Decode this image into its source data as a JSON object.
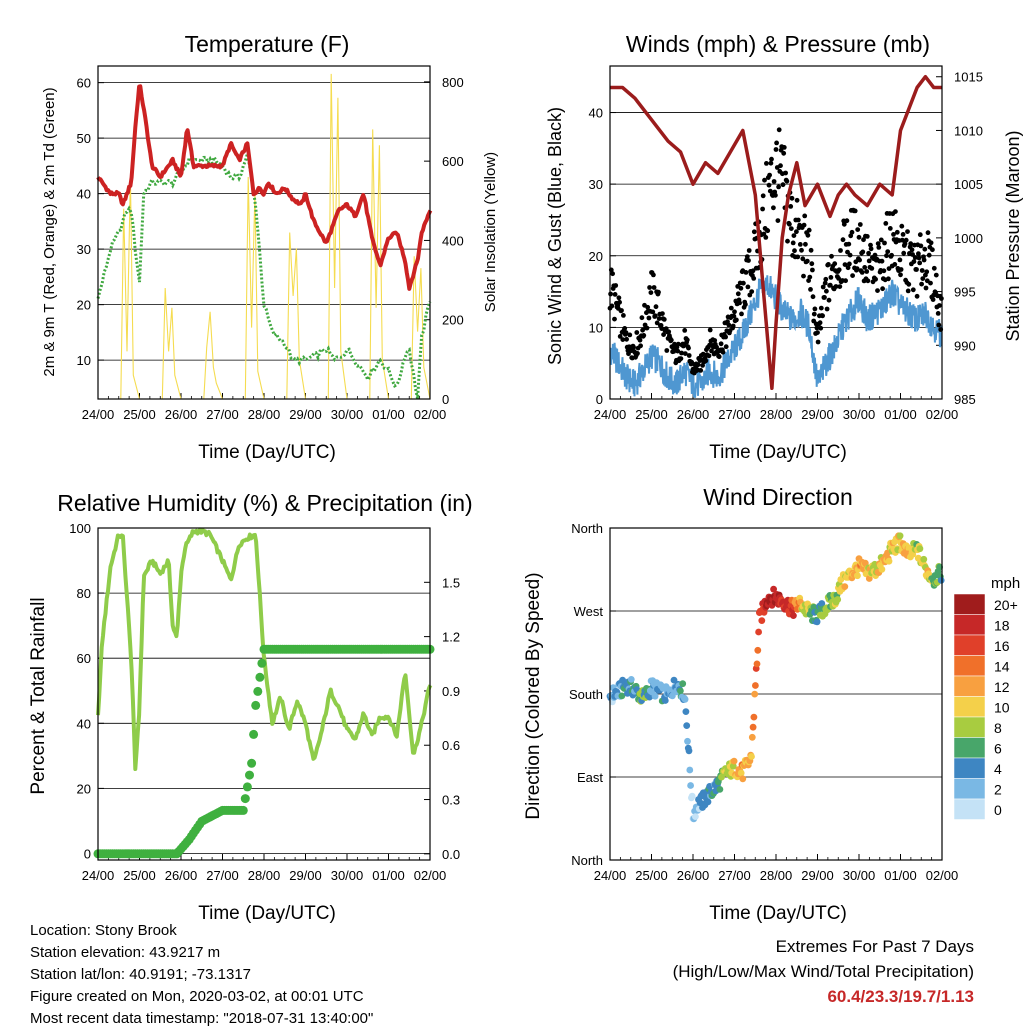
{
  "x_tick_labels": [
    "24/00",
    "25/00",
    "26/00",
    "27/00",
    "28/00",
    "29/00",
    "30/00",
    "01/00",
    "02/00"
  ],
  "footer": {
    "location": "Location: Stony Brook",
    "elevation": "Station elevation: 43.9217 m",
    "latlon": "Station lat/lon: 40.9191; -73.1317",
    "created": "Figure created on Mon, 2020-03-02, at 00:01 UTC",
    "recent": "Most recent data timestamp: \"2018-07-31 13:40:00\"",
    "extremes_title": "Extremes For Past 7 Days",
    "extremes_desc": "(High/Low/Max Wind/Total Precipitation)",
    "extremes_values": "60.4/23.3/19.7/1.13"
  },
  "colors": {
    "temp": "#cc2222",
    "dewpoint": "#3fa83f",
    "solar": "#f5dc50",
    "pressure": "#9b1c1c",
    "wind": "#4f97d1",
    "gust": "#000000",
    "rh": "#8fcc4a",
    "rain": "#3fb03f"
  },
  "chart_data": [
    {
      "type": "line",
      "title": "Temperature (F)",
      "xlabel": "Time (Day/UTC)",
      "ylabel": "2m & 9m T (Red, Orange) & 2m Td (Green)",
      "ylabel_right": "Solar Insolation (Yellow)",
      "xlim": [
        0,
        8
      ],
      "ylim": [
        3,
        63
      ],
      "yticks": [
        10,
        20,
        30,
        40,
        50,
        60
      ],
      "ylim_right": [
        0,
        840
      ],
      "yticks_right": [
        0,
        200,
        400,
        600,
        800
      ],
      "grid": true,
      "series": [
        {
          "name": "2m T (Red)",
          "x": [
            0,
            0.3,
            0.5,
            0.6,
            0.8,
            0.9,
            1.0,
            1.15,
            1.3,
            1.5,
            1.8,
            2.0,
            2.15,
            2.3,
            2.5,
            2.8,
            3.0,
            3.2,
            3.4,
            3.6,
            3.75,
            3.9,
            4.0,
            4.1,
            4.3,
            4.5,
            4.7,
            4.9,
            5.0,
            5.2,
            5.5,
            5.8,
            6.0,
            6.2,
            6.4,
            6.6,
            6.8,
            7.0,
            7.2,
            7.4,
            7.5,
            7.7,
            7.8,
            8.0
          ],
          "y": [
            43,
            40,
            40,
            38,
            42,
            52,
            60,
            53,
            45,
            43,
            46,
            43,
            52,
            45,
            45,
            45,
            45,
            49,
            46,
            49,
            40,
            41,
            40,
            42,
            40,
            41,
            39,
            38,
            40,
            35,
            31,
            37,
            38,
            36,
            40,
            32,
            27,
            32,
            33,
            28,
            23,
            28,
            33,
            37
          ]
        },
        {
          "name": "2m Td (Green)",
          "x": [
            0,
            0.3,
            0.5,
            0.7,
            0.8,
            0.9,
            1.0,
            1.1,
            1.3,
            1.5,
            1.8,
            2.0,
            2.2,
            2.5,
            2.8,
            3.0,
            3.2,
            3.4,
            3.6,
            3.8,
            4.0,
            4.2,
            4.5,
            4.7,
            5.0,
            5.3,
            5.5,
            5.7,
            5.9,
            6.0,
            6.2,
            6.5,
            6.8,
            7.0,
            7.2,
            7.4,
            7.5,
            7.7,
            7.8,
            8.0
          ],
          "y": [
            21,
            30,
            33,
            37,
            37,
            30,
            24,
            40,
            42,
            42,
            42,
            44,
            46,
            46,
            46,
            45,
            43,
            43,
            47,
            38,
            20,
            15,
            13,
            10,
            10,
            11,
            12,
            10,
            11,
            12,
            10,
            7,
            10,
            8,
            5,
            11,
            12,
            3,
            14,
            21
          ]
        },
        {
          "name": "Solar Insolation (Yellow)",
          "axis": "right",
          "x": [
            0,
            0.55,
            0.62,
            0.7,
            0.78,
            0.85,
            1.0,
            1.55,
            1.62,
            1.7,
            1.78,
            1.85,
            2.0,
            2.55,
            2.62,
            2.7,
            2.78,
            2.85,
            3.0,
            3.55,
            3.62,
            3.7,
            3.78,
            3.85,
            4.0,
            4.55,
            4.62,
            4.7,
            4.78,
            4.85,
            5.0,
            5.55,
            5.62,
            5.7,
            5.78,
            5.85,
            6.0,
            6.55,
            6.62,
            6.7,
            6.78,
            6.85,
            7.0,
            7.55,
            7.62,
            7.7,
            7.78,
            7.85,
            8.0
          ],
          "y": [
            0,
            0,
            480,
            120,
            560,
            60,
            0,
            0,
            280,
            120,
            230,
            60,
            0,
            0,
            130,
            220,
            80,
            40,
            0,
            0,
            560,
            180,
            520,
            70,
            0,
            0,
            420,
            260,
            380,
            100,
            0,
            0,
            820,
            280,
            760,
            120,
            0,
            0,
            680,
            230,
            640,
            100,
            0,
            0,
            360,
            170,
            330,
            80,
            0
          ]
        }
      ]
    },
    {
      "type": "scatter",
      "title": "Winds (mph) & Pressure (mb)",
      "xlabel": "Time (Day/UTC)",
      "ylabel": "Sonic Wind & Gust (Blue, Black)",
      "ylabel_right": "Station Pressure (Maroon)",
      "xlim": [
        0,
        8
      ],
      "ylim": [
        0,
        46.5
      ],
      "yticks": [
        0,
        10,
        20,
        30,
        40
      ],
      "ylim_right": [
        985,
        1016
      ],
      "yticks_right": [
        985,
        990,
        995,
        1000,
        1005,
        1010,
        1015
      ],
      "grid": true,
      "series": [
        {
          "name": "Sonic Wind (Blue)",
          "x": [
            0,
            0.2,
            0.4,
            0.6,
            0.8,
            1.0,
            1.2,
            1.4,
            1.6,
            1.8,
            2.0,
            2.2,
            2.4,
            2.6,
            2.8,
            3.0,
            3.2,
            3.4,
            3.6,
            3.8,
            4.0,
            4.2,
            4.4,
            4.6,
            4.8,
            5.0,
            5.2,
            5.4,
            5.6,
            5.8,
            6.0,
            6.2,
            6.4,
            6.6,
            6.8,
            7.0,
            7.2,
            7.4,
            7.6,
            7.8,
            8.0
          ],
          "y": [
            7,
            5,
            3,
            2,
            4,
            6,
            5,
            3,
            2,
            4,
            2,
            2,
            4,
            3,
            5,
            7,
            9,
            12,
            15,
            16,
            14,
            12,
            11,
            12,
            10,
            2,
            5,
            7,
            10,
            12,
            14,
            11,
            12,
            13,
            15,
            13,
            12,
            11,
            12,
            10,
            9
          ]
        },
        {
          "name": "Gust (Black)",
          "x": [
            0,
            0.2,
            0.4,
            0.6,
            0.8,
            1.0,
            1.2,
            1.4,
            1.6,
            1.8,
            2.0,
            2.2,
            2.4,
            2.6,
            2.8,
            3.0,
            3.2,
            3.4,
            3.6,
            3.8,
            4.0,
            4.2,
            4.4,
            4.6,
            4.8,
            5.0,
            5.2,
            5.4,
            5.6,
            5.8,
            6.0,
            6.2,
            6.4,
            6.6,
            6.8,
            7.0,
            7.2,
            7.4,
            7.6,
            7.8,
            8.0
          ],
          "y": [
            16,
            12,
            8,
            7,
            10,
            15,
            12,
            8,
            6,
            8,
            4,
            5,
            8,
            7,
            9,
            12,
            15,
            18,
            22,
            28,
            32,
            29,
            24,
            22,
            20,
            8,
            15,
            18,
            20,
            22,
            22,
            19,
            17,
            20,
            23,
            20,
            19,
            18,
            20,
            17,
            11
          ]
        },
        {
          "name": "Station Pressure (Maroon)",
          "axis": "right",
          "x": [
            0,
            0.3,
            0.6,
            1.0,
            1.4,
            1.7,
            2.0,
            2.3,
            2.6,
            2.9,
            3.2,
            3.5,
            3.7,
            3.9,
            4.0,
            4.15,
            4.3,
            4.5,
            4.7,
            5.0,
            5.3,
            5.5,
            5.7,
            5.9,
            6.2,
            6.5,
            6.8,
            7.0,
            7.2,
            7.4,
            7.6,
            7.8,
            8.0
          ],
          "y": [
            1014,
            1014,
            1013,
            1011,
            1009,
            1008,
            1005,
            1007,
            1006,
            1008,
            1010,
            1004,
            995,
            986,
            992,
            1000,
            1004,
            1007,
            1003,
            1005,
            1002,
            1004,
            1005,
            1004,
            1003,
            1005,
            1004,
            1010,
            1012,
            1014,
            1015,
            1014,
            1014
          ]
        }
      ]
    },
    {
      "type": "line",
      "title": "Relative Humidity (%) & Precipitation (in)",
      "xlabel": "Time (Day/UTC)",
      "ylabel": "Percent & Total Rainfall",
      "xlim": [
        0,
        8
      ],
      "ylim": [
        -2,
        100
      ],
      "yticks": [
        0,
        20,
        40,
        60,
        80,
        100
      ],
      "ylim_right": [
        -0.034,
        1.8
      ],
      "yticks_right": [
        0.0,
        0.3,
        0.6,
        0.9,
        1.2,
        1.5
      ],
      "grid": true,
      "series": [
        {
          "name": "Relative Humidity",
          "x": [
            0,
            0.1,
            0.3,
            0.5,
            0.6,
            0.8,
            0.9,
            1.0,
            1.1,
            1.3,
            1.5,
            1.7,
            1.8,
            1.9,
            2.0,
            2.1,
            2.3,
            2.5,
            2.7,
            3.0,
            3.2,
            3.4,
            3.6,
            3.8,
            4.0,
            4.2,
            4.4,
            4.6,
            4.8,
            5.0,
            5.2,
            5.4,
            5.6,
            5.8,
            6.0,
            6.2,
            6.4,
            6.6,
            6.8,
            7.0,
            7.2,
            7.4,
            7.6,
            7.8,
            8.0
          ],
          "y": [
            42,
            65,
            88,
            98,
            97,
            60,
            26,
            45,
            85,
            90,
            86,
            90,
            70,
            66,
            86,
            94,
            99,
            99,
            98,
            90,
            84,
            95,
            97,
            98,
            60,
            40,
            48,
            38,
            47,
            40,
            28,
            38,
            50,
            45,
            38,
            35,
            43,
            36,
            42,
            42,
            36,
            56,
            30,
            40,
            52
          ]
        },
        {
          "name": "Total Rainfall",
          "axis": "right",
          "x": [
            0,
            1.0,
            1.9,
            2.2,
            2.5,
            3.0,
            3.3,
            3.5,
            3.7,
            3.8,
            4.0,
            5.0,
            6.0,
            7.0,
            8.0
          ],
          "y": [
            0.0,
            0.0,
            0.0,
            0.08,
            0.18,
            0.24,
            0.24,
            0.24,
            0.5,
            0.82,
            1.13,
            1.13,
            1.13,
            1.13,
            1.13
          ]
        }
      ]
    },
    {
      "type": "scatter",
      "title": "Wind Direction",
      "xlabel": "Time (Day/UTC)",
      "ylabel": "Direction (Colored By Speed)",
      "xlim": [
        0,
        8
      ],
      "ylim": [
        0,
        360
      ],
      "ytick_values": [
        0,
        90,
        180,
        270,
        360
      ],
      "yticks": [
        "North",
        "East",
        "South",
        "West",
        "North"
      ],
      "grid": true,
      "colorbar": {
        "unit": "mph",
        "labels": [
          "20+",
          "18",
          "16",
          "14",
          "12",
          "10",
          "8",
          "6",
          "4",
          "2",
          "0"
        ],
        "colors": [
          "#a01c1c",
          "#c62828",
          "#e0402a",
          "#f0702a",
          "#f8a040",
          "#f4d04a",
          "#a8cc40",
          "#48a66a",
          "#3e86c2",
          "#7ab8e4",
          "#c4e2f6"
        ]
      },
      "series": [
        {
          "name": "Direction",
          "x": [
            0,
            0.2,
            0.4,
            0.6,
            0.8,
            1.0,
            1.2,
            1.4,
            1.6,
            1.8,
            2.0,
            2.1,
            2.2,
            2.4,
            2.6,
            2.8,
            3.0,
            3.2,
            3.4,
            3.6,
            3.8,
            4.0,
            4.2,
            4.4,
            4.6,
            4.8,
            5.0,
            5.2,
            5.4,
            5.6,
            5.8,
            6.0,
            6.2,
            6.4,
            6.6,
            6.8,
            7.0,
            7.2,
            7.4,
            7.6,
            7.8,
            8.0
          ],
          "y": [
            178,
            182,
            190,
            185,
            175,
            188,
            182,
            178,
            192,
            180,
            48,
            60,
            62,
            72,
            82,
            95,
            100,
            95,
            110,
            260,
            285,
            285,
            280,
            272,
            278,
            268,
            265,
            275,
            282,
            300,
            310,
            318,
            312,
            315,
            322,
            338,
            345,
            330,
            338,
            315,
            305,
            312
          ],
          "speed": [
            2,
            3,
            4,
            4,
            6,
            3,
            4,
            3,
            3,
            4,
            1,
            2,
            3,
            4,
            5,
            8,
            10,
            12,
            12,
            16,
            20,
            18,
            17,
            16,
            10,
            8,
            5,
            7,
            8,
            9,
            10,
            12,
            10,
            9,
            11,
            9,
            10,
            12,
            8,
            10,
            8,
            6
          ]
        }
      ]
    }
  ]
}
